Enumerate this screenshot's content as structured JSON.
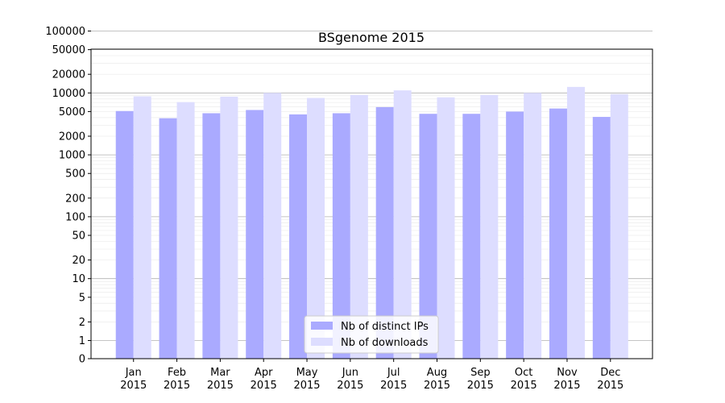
{
  "chart_data": {
    "type": "bar",
    "title": "BSgenome 2015",
    "xlabel": "",
    "ylabel": "",
    "y_scale": "symlog",
    "ylim": [
      0,
      150000
    ],
    "y_ticks": [
      "0",
      "1",
      "2",
      "5",
      "10",
      "20",
      "50",
      "100",
      "200",
      "500",
      "1000",
      "2000",
      "5000",
      "10000",
      "20000",
      "50000",
      "100000"
    ],
    "categories": [
      {
        "month": "Jan",
        "year": "2015"
      },
      {
        "month": "Feb",
        "year": "2015"
      },
      {
        "month": "Mar",
        "year": "2015"
      },
      {
        "month": "Apr",
        "year": "2015"
      },
      {
        "month": "May",
        "year": "2015"
      },
      {
        "month": "Jun",
        "year": "2015"
      },
      {
        "month": "Jul",
        "year": "2015"
      },
      {
        "month": "Aug",
        "year": "2015"
      },
      {
        "month": "Sep",
        "year": "2015"
      },
      {
        "month": "Oct",
        "year": "2015"
      },
      {
        "month": "Nov",
        "year": "2015"
      },
      {
        "month": "Dec",
        "year": "2015"
      }
    ],
    "series": [
      {
        "name": "Nb of distinct IPs",
        "color": "#aaaaff",
        "values": [
          5100,
          3900,
          4700,
          5300,
          4500,
          4700,
          5900,
          4600,
          4600,
          5000,
          5600,
          4100
        ]
      },
      {
        "name": "Nb of downloads",
        "color": "#ddddff",
        "values": [
          8800,
          7100,
          8700,
          10000,
          8300,
          9300,
          11000,
          8500,
          9300,
          10000,
          12500,
          9600
        ]
      }
    ],
    "grid": true,
    "legend_position": "bottom-center"
  }
}
